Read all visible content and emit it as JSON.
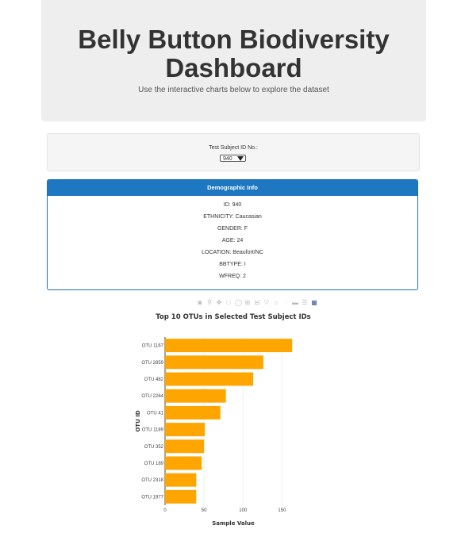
{
  "header": {
    "title": "Belly Button Biodiversity Dashboard",
    "subtitle": "Use the interactive charts below to explore the dataset"
  },
  "selector": {
    "label": "Test Subject ID No.:",
    "selected": "940"
  },
  "demographics": {
    "title": "Demographic Info",
    "lines": [
      "ID: 940",
      "ETHNICITY: Caucasian",
      "GENDER: F",
      "AGE: 24",
      "LOCATION: Beaufort/NC",
      "BBTYPE: I",
      "WFREQ: 2"
    ]
  },
  "modebar_icons": [
    "camera-icon",
    "zoom-icon",
    "pan-icon",
    "box-select-icon",
    "lasso-icon",
    "zoom-in-icon",
    "zoom-out-icon",
    "autoscale-icon",
    "reset-axes-icon",
    "spike-lines-icon",
    "hover-closest-icon",
    "hover-compare-icon",
    "plotly-logo-icon"
  ],
  "chart_data": {
    "type": "bar",
    "orientation": "horizontal",
    "title": "Top 10 OTUs in Selected Test Subject IDs",
    "xlabel": "Sample Value",
    "ylabel": "OTU ID",
    "categories": [
      "OTU 1167",
      "OTU 2859",
      "OTU 482",
      "OTU 2264",
      "OTU 41",
      "OTU 1189",
      "OTU 352",
      "OTU 189",
      "OTU 2318",
      "OTU 1977"
    ],
    "values": [
      163,
      126,
      113,
      78,
      71,
      51,
      50,
      47,
      40,
      40
    ],
    "xlim": [
      0,
      175
    ],
    "xticks": [
      0,
      50,
      100,
      150
    ],
    "bar_color": "#ffa500",
    "grid": true,
    "legend": "none"
  }
}
